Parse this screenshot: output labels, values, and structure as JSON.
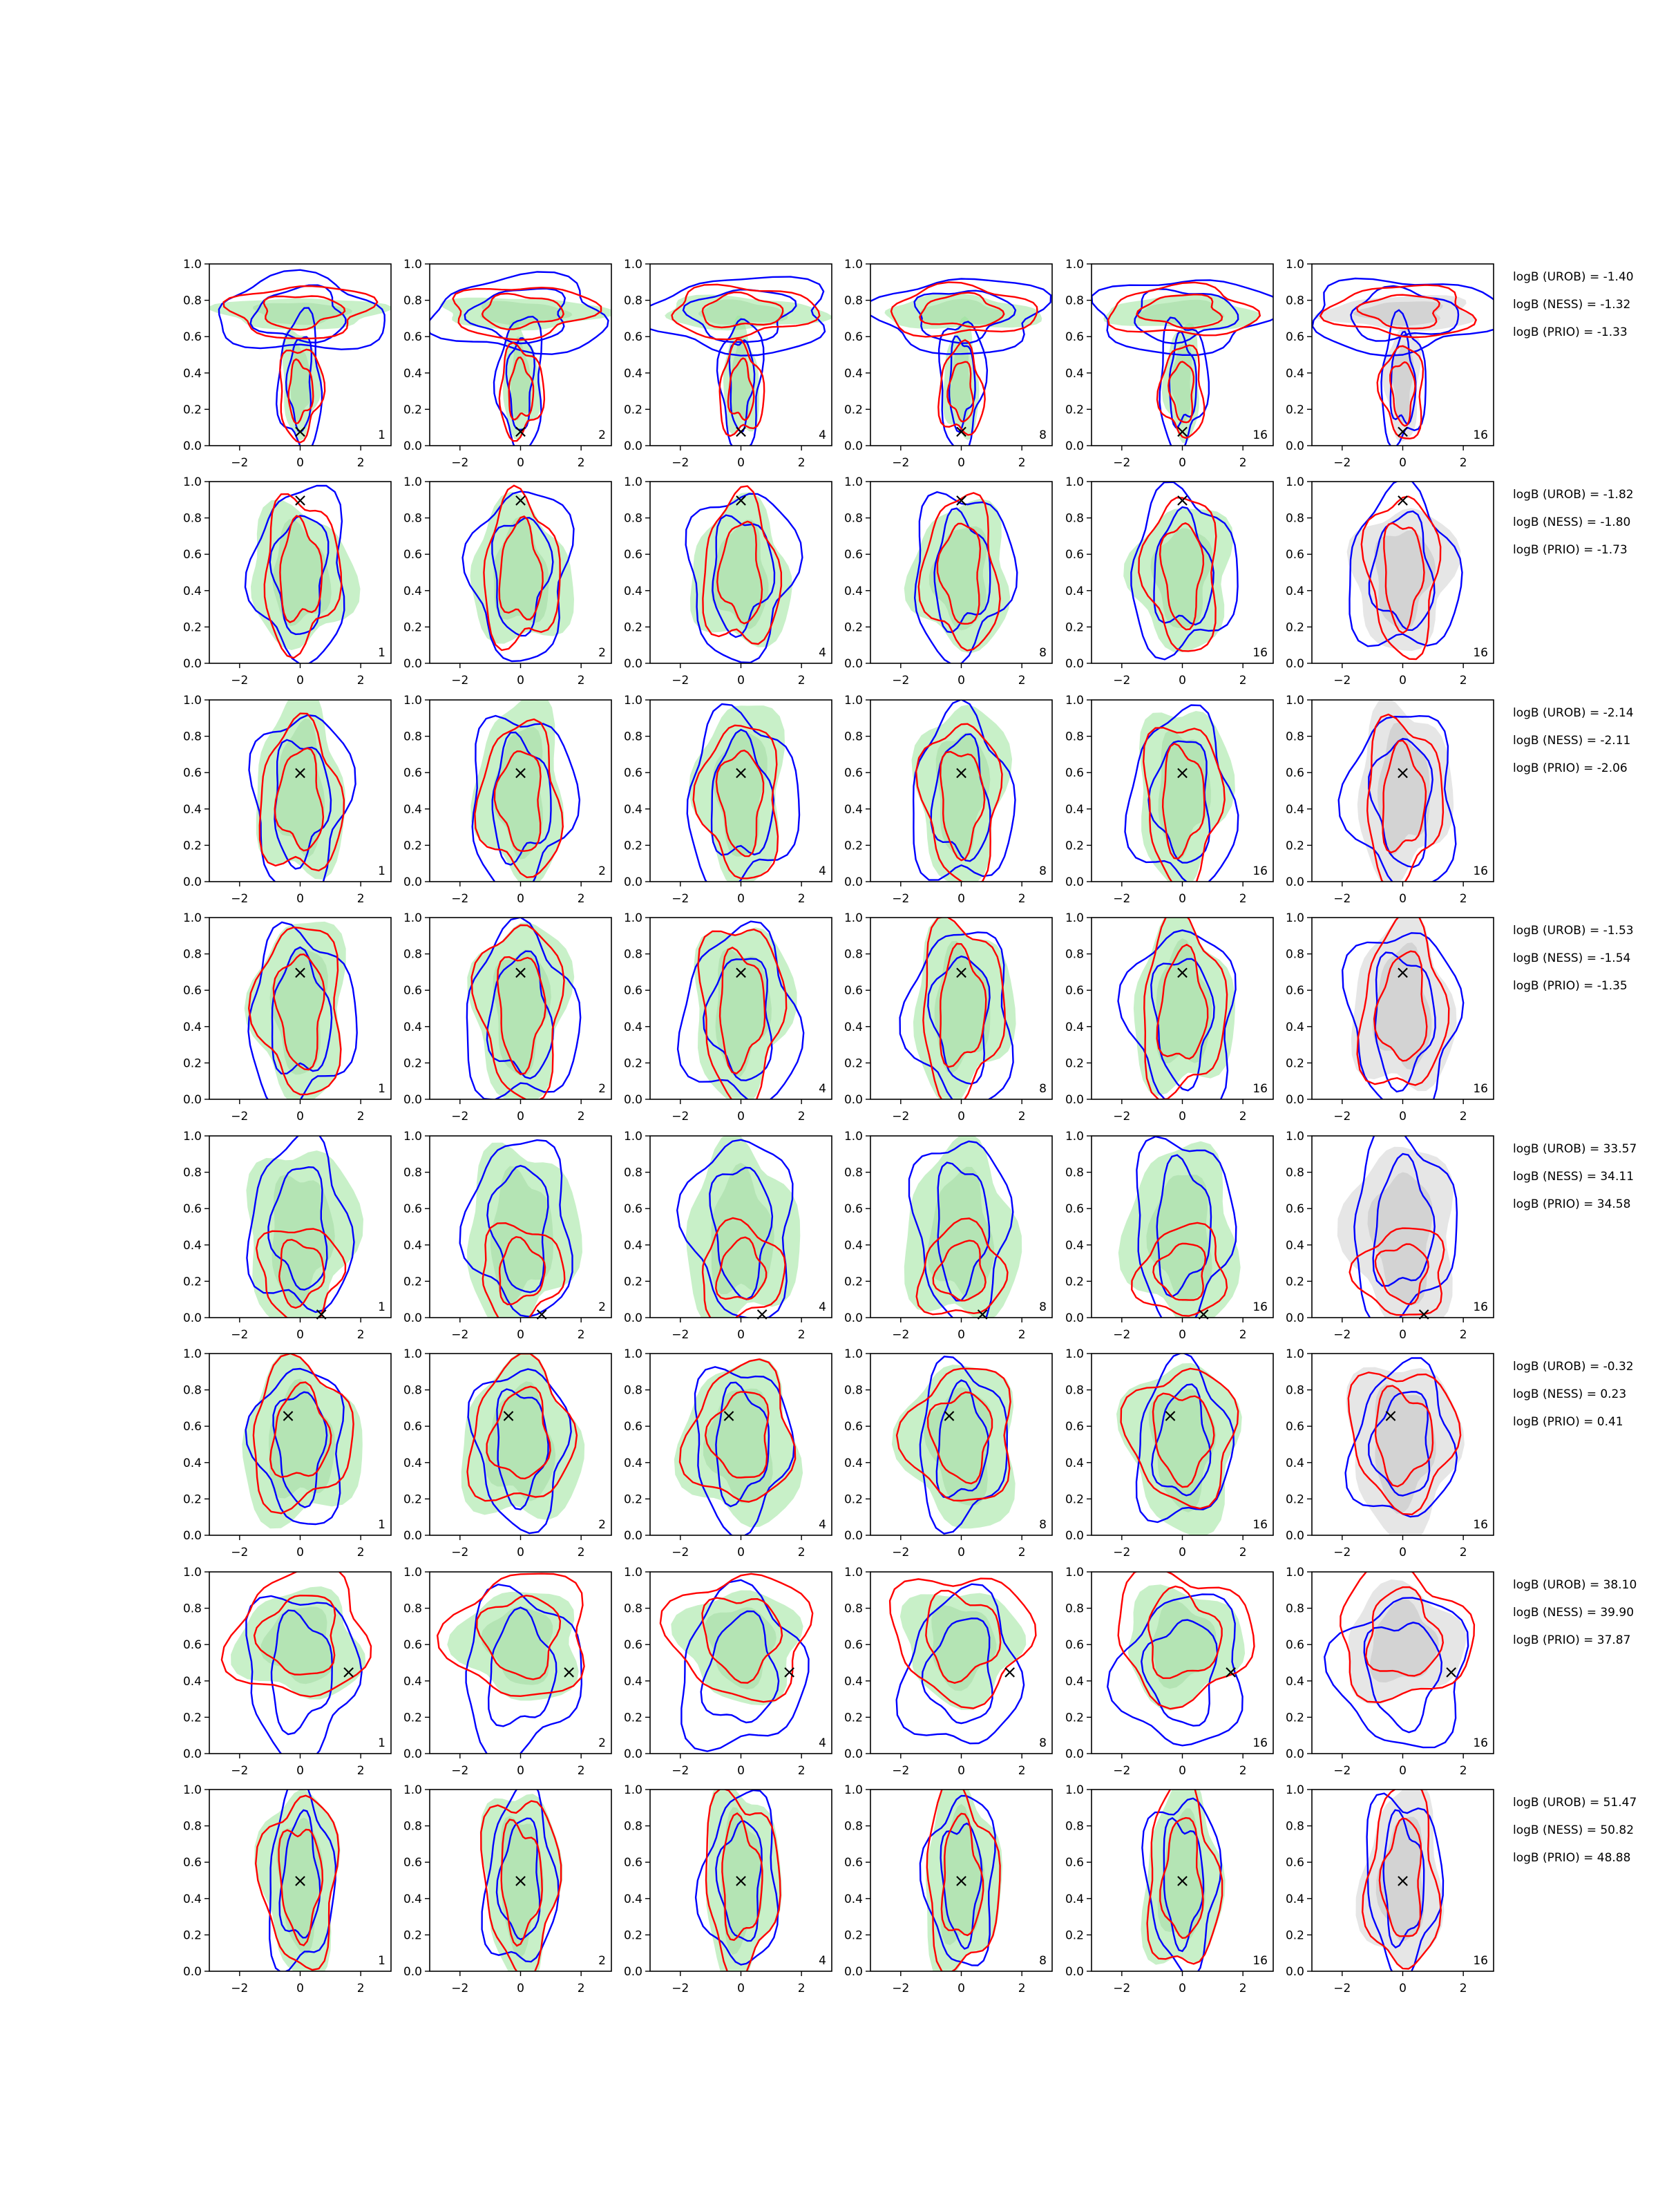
{
  "figure": {
    "colors": {
      "background": "#ffffff",
      "green_fill": "#9ae39a",
      "grey_fill": "#c8c8c8",
      "blue_contour": "#0000ff",
      "red_contour": "#ff0000",
      "true_marker": "#000000",
      "axes": "#000000"
    },
    "axes_common": {
      "xlim": [
        -3,
        3
      ],
      "ylim": [
        0,
        1
      ],
      "xticks": [
        -2,
        0,
        2
      ],
      "yticks": [
        0.0,
        0.2,
        0.4,
        0.6,
        0.8,
        1.0
      ],
      "xtick_labels": [
        "−2",
        "0",
        "2"
      ],
      "ytick_labels": [
        "0.0",
        "0.2",
        "0.4",
        "0.6",
        "0.8",
        "1.0"
      ],
      "marker": "×"
    },
    "column_labels": [
      "1",
      "2",
      "4",
      "8",
      "16",
      "16"
    ],
    "column_fill": [
      "green",
      "green",
      "green",
      "green",
      "green",
      "grey"
    ],
    "rows": [
      {
        "truth": [
          0.0,
          0.08
        ],
        "logB": [
          "logB (UROB) = -1.40",
          "logB (NESS) = -1.32",
          "logB (PRIO) = -1.33"
        ],
        "green": [
          [
            0,
            0.73,
            2.6,
            0.09
          ],
          [
            0,
            0.35,
            0.6,
            0.3
          ]
        ],
        "blue": [
          [
            0,
            0.72,
            2.8,
            0.2
          ],
          [
            0,
            0.35,
            0.7,
            0.35
          ]
        ],
        "red": [
          [
            0,
            0.74,
            2.3,
            0.14
          ],
          [
            0,
            0.3,
            0.7,
            0.25
          ]
        ]
      },
      {
        "truth": [
          0.0,
          0.9
        ],
        "logB": [
          "logB (UROB) = -1.82",
          "logB (NESS) = -1.80",
          "logB (PRIO) = -1.73"
        ],
        "green": [
          [
            0,
            0.48,
            1.7,
            0.38
          ]
        ],
        "blue": [
          [
            0,
            0.5,
            1.6,
            0.45
          ]
        ],
        "red": [
          [
            0,
            0.5,
            1.2,
            0.42
          ]
        ]
      },
      {
        "truth": [
          0.0,
          0.6
        ],
        "logB": [
          "logB (UROB) = -2.14",
          "logB (NESS) = -2.11",
          "logB (PRIO) = -2.06"
        ],
        "green": [
          [
            0,
            0.5,
            1.5,
            0.48
          ]
        ],
        "blue": [
          [
            0,
            0.45,
            1.6,
            0.48
          ]
        ],
        "red": [
          [
            0,
            0.45,
            1.3,
            0.42
          ]
        ]
      },
      {
        "truth": [
          0.0,
          0.7
        ],
        "logB": [
          "logB (UROB) = -1.53",
          "logB (NESS) = -1.54",
          "logB (PRIO) = -1.35"
        ],
        "green": [
          [
            0,
            0.5,
            1.6,
            0.48
          ]
        ],
        "blue": [
          [
            0,
            0.45,
            1.7,
            0.48
          ]
        ],
        "red": [
          [
            0,
            0.5,
            1.4,
            0.46
          ]
        ]
      },
      {
        "truth": [
          0.7,
          0.02
        ],
        "logB": [
          "logB (UROB) = 33.57",
          "logB (NESS) = 34.11",
          "logB (PRIO) = 34.58"
        ],
        "green": [
          [
            0,
            0.45,
            1.8,
            0.5
          ]
        ],
        "blue": [
          [
            0,
            0.5,
            1.6,
            0.48
          ]
        ],
        "red": [
          [
            0,
            0.25,
            1.4,
            0.25
          ]
        ]
      },
      {
        "truth": [
          -0.4,
          0.66
        ],
        "logB": [
          "logB (UROB) = -0.32",
          "logB (NESS) = 0.23",
          "logB (PRIO) = 0.41"
        ],
        "green": [
          [
            0,
            0.5,
            1.9,
            0.45
          ]
        ],
        "blue": [
          [
            0,
            0.5,
            1.5,
            0.42
          ]
        ],
        "red": [
          [
            0,
            0.55,
            1.7,
            0.38
          ]
        ]
      },
      {
        "truth": [
          1.6,
          0.45
        ],
        "logB": [
          "logB (UROB) = 38.10",
          "logB (NESS) = 39.90",
          "logB (PRIO) = 37.87"
        ],
        "green": [
          [
            0,
            0.6,
            2.0,
            0.3
          ]
        ],
        "blue": [
          [
            0,
            0.45,
            1.9,
            0.42
          ]
        ],
        "red": [
          [
            0,
            0.65,
            2.2,
            0.35
          ]
        ]
      },
      {
        "truth": [
          0.0,
          0.5
        ],
        "logB": [
          "logB (UROB) = 51.47",
          "logB (NESS) = 50.82",
          "logB (PRIO) = 48.88"
        ],
        "green": [
          [
            0,
            0.5,
            1.3,
            0.5
          ]
        ],
        "blue": [
          [
            0,
            0.5,
            1.1,
            0.48
          ]
        ],
        "red": [
          [
            0,
            0.5,
            1.2,
            0.48
          ]
        ]
      }
    ]
  },
  "chart_data": {
    "type": "scatter",
    "title": "",
    "xlabel": "",
    "ylabel": "",
    "xlim": [
      -3,
      3
    ],
    "ylim": [
      0,
      1
    ],
    "grid": false,
    "legend": "none",
    "n_rows": 8,
    "n_cols": 6,
    "column_labels": [
      "1",
      "2",
      "4",
      "8",
      "16",
      "16"
    ],
    "true_points": [
      {
        "x": 0.0,
        "y": 0.08
      },
      {
        "x": 0.0,
        "y": 0.9
      },
      {
        "x": 0.0,
        "y": 0.6
      },
      {
        "x": 0.0,
        "y": 0.7
      },
      {
        "x": 0.7,
        "y": 0.02
      },
      {
        "x": -0.4,
        "y": 0.66
      },
      {
        "x": 1.6,
        "y": 0.45
      },
      {
        "x": 0.0,
        "y": 0.5
      }
    ],
    "logB": [
      {
        "UROB": -1.4,
        "NESS": -1.32,
        "PRIO": -1.33
      },
      {
        "UROB": -1.82,
        "NESS": -1.8,
        "PRIO": -1.73
      },
      {
        "UROB": -2.14,
        "NESS": -2.11,
        "PRIO": -2.06
      },
      {
        "UROB": -1.53,
        "NESS": -1.54,
        "PRIO": -1.35
      },
      {
        "UROB": 33.57,
        "NESS": 34.11,
        "PRIO": 34.58
      },
      {
        "UROB": -0.32,
        "NESS": 0.23,
        "PRIO": 0.41
      },
      {
        "UROB": 38.1,
        "NESS": 39.9,
        "PRIO": 37.87
      },
      {
        "UROB": 51.47,
        "NESS": 50.82,
        "PRIO": 48.88
      }
    ]
  }
}
